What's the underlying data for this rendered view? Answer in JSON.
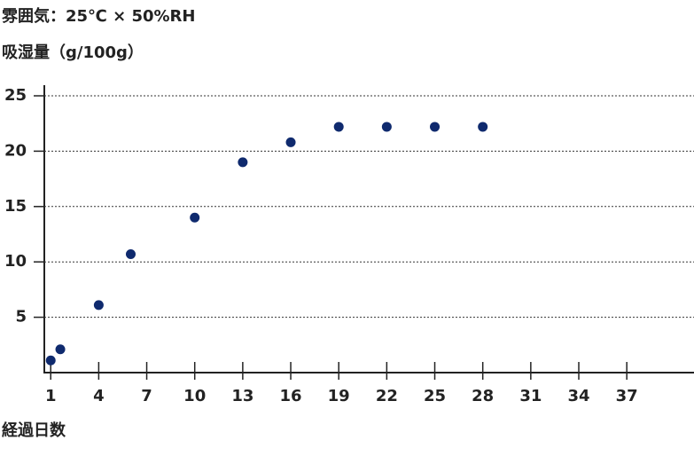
{
  "chart_data": {
    "type": "scatter",
    "title": "雰囲気：25℃ × 50%RH",
    "y_label": "吸湿量（g/100g）",
    "x_label": "経過日数",
    "x": [
      1,
      1.6,
      4,
      6,
      10,
      13,
      16,
      19,
      22,
      25,
      28
    ],
    "values": [
      1.1,
      2.1,
      6.1,
      10.7,
      14.0,
      19.0,
      20.8,
      22.2,
      22.2,
      22.2,
      22.2
    ],
    "color": "#0f2a6e",
    "xlim": [
      0.6,
      41.2
    ],
    "xticks": [
      1,
      4,
      7,
      10,
      13,
      16,
      19,
      22,
      25,
      28,
      31,
      34,
      37
    ],
    "ylim": [
      0,
      25
    ],
    "yticks": [
      5,
      10,
      15,
      20,
      25
    ],
    "grid": true
  }
}
